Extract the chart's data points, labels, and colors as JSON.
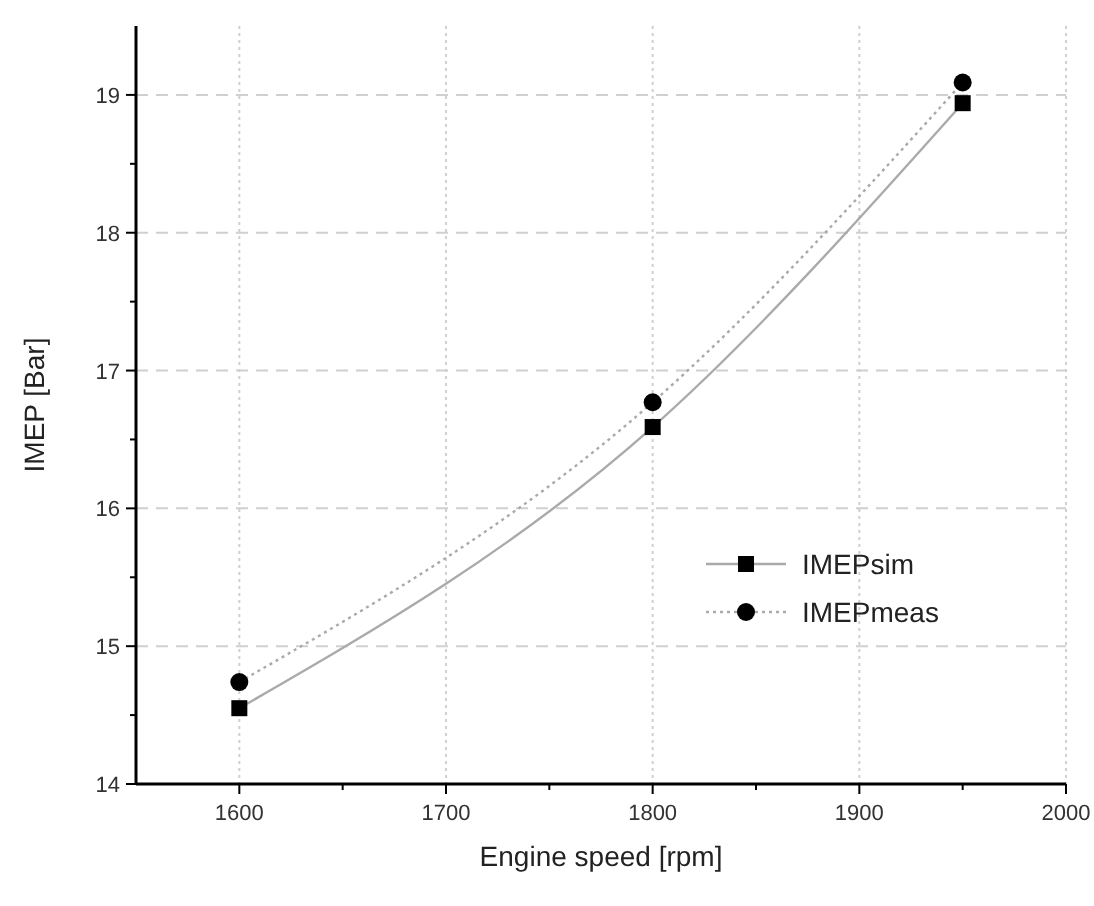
{
  "chart_data": {
    "type": "line",
    "xlabel": "Engine speed [rpm]",
    "ylabel": "IMEP [Bar]",
    "x": [
      1600,
      1800,
      1950
    ],
    "series": [
      {
        "name": "IMEPsim",
        "color": "#000000",
        "values": [
          14.55,
          16.59,
          18.94
        ],
        "marker": "square",
        "line_style": "solid"
      },
      {
        "name": "IMEPmeas",
        "color": "#000000",
        "values": [
          14.74,
          16.77,
          19.09
        ],
        "marker": "circle",
        "line_style": "dotted"
      }
    ],
    "xlim": [
      1550,
      2000
    ],
    "xticks": [
      1600,
      {
        "value": 1650,
        "label": null
      },
      1700,
      {
        "value": 1750,
        "label": null
      },
      1800,
      {
        "value": 1850,
        "label": null
      },
      1900,
      {
        "value": 1950,
        "label": null
      },
      2000
    ],
    "ylim": [
      14,
      19.5
    ],
    "yticks": [
      14,
      {
        "value": 14.5,
        "label": null
      },
      15,
      {
        "value": 15.5,
        "label": null
      },
      16,
      {
        "value": 16.5,
        "label": null
      },
      17,
      {
        "value": 17.5,
        "label": null
      },
      18,
      {
        "value": 18.5,
        "label": null
      },
      19
    ],
    "grid": true,
    "legend": "bottom right"
  }
}
